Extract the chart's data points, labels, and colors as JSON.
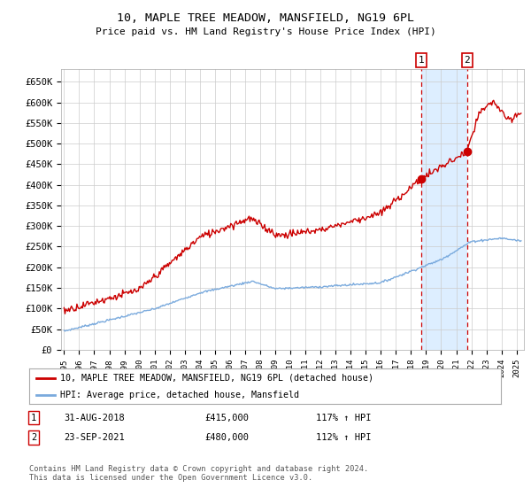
{
  "title": "10, MAPLE TREE MEADOW, MANSFIELD, NG19 6PL",
  "subtitle": "Price paid vs. HM Land Registry's House Price Index (HPI)",
  "ylabel_ticks": [
    "£0",
    "£50K",
    "£100K",
    "£150K",
    "£200K",
    "£250K",
    "£300K",
    "£350K",
    "£400K",
    "£450K",
    "£500K",
    "£550K",
    "£600K",
    "£650K"
  ],
  "ylim": [
    0,
    680000
  ],
  "xlim_start": 1994.8,
  "xlim_end": 2025.5,
  "marker1_x": 2018.667,
  "marker1_y": 415000,
  "marker2_x": 2021.73,
  "marker2_y": 480000,
  "marker1_date": "31-AUG-2018",
  "marker1_price": "£415,000",
  "marker1_hpi": "117% ↑ HPI",
  "marker2_date": "23-SEP-2021",
  "marker2_price": "£480,000",
  "marker2_hpi": "112% ↑ HPI",
  "legend_line1": "10, MAPLE TREE MEADOW, MANSFIELD, NG19 6PL (detached house)",
  "legend_line2": "HPI: Average price, detached house, Mansfield",
  "footer": "Contains HM Land Registry data © Crown copyright and database right 2024.\nThis data is licensed under the Open Government Licence v3.0.",
  "red_color": "#cc0000",
  "blue_color": "#7aaadd",
  "background_color": "#ffffff",
  "grid_color": "#cccccc",
  "highlight_color": "#ddeeff"
}
